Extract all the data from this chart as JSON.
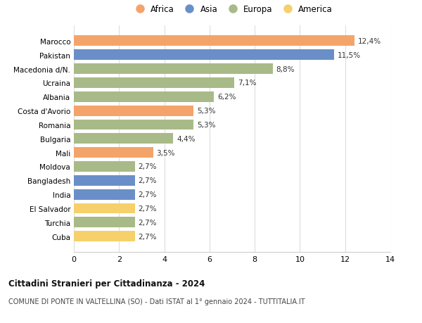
{
  "countries": [
    "Marocco",
    "Pakistan",
    "Macedonia d/N.",
    "Ucraina",
    "Albania",
    "Costa d'Avorio",
    "Romania",
    "Bulgaria",
    "Mali",
    "Moldova",
    "Bangladesh",
    "India",
    "El Salvador",
    "Turchia",
    "Cuba"
  ],
  "values": [
    12.4,
    11.5,
    8.8,
    7.1,
    6.2,
    5.3,
    5.3,
    4.4,
    3.5,
    2.7,
    2.7,
    2.7,
    2.7,
    2.7,
    2.7
  ],
  "labels": [
    "12,4%",
    "11,5%",
    "8,8%",
    "7,1%",
    "6,2%",
    "5,3%",
    "5,3%",
    "4,4%",
    "3,5%",
    "2,7%",
    "2,7%",
    "2,7%",
    "2,7%",
    "2,7%",
    "2,7%"
  ],
  "continents": [
    "Africa",
    "Asia",
    "Europa",
    "Europa",
    "Europa",
    "Africa",
    "Europa",
    "Europa",
    "Africa",
    "Europa",
    "Asia",
    "Asia",
    "America",
    "Europa",
    "America"
  ],
  "colors": {
    "Africa": "#F4A46A",
    "Asia": "#6A8FC8",
    "Europa": "#A8BA87",
    "America": "#F5D06B"
  },
  "legend_order": [
    "Africa",
    "Asia",
    "Europa",
    "America"
  ],
  "title": "Cittadini Stranieri per Cittadinanza - 2024",
  "subtitle": "COMUNE DI PONTE IN VALTELLINA (SO) - Dati ISTAT al 1° gennaio 2024 - TUTTITALIA.IT",
  "xlim": [
    0,
    14
  ],
  "xticks": [
    0,
    2,
    4,
    6,
    8,
    10,
    12,
    14
  ],
  "background_color": "#ffffff",
  "grid_color": "#dddddd"
}
